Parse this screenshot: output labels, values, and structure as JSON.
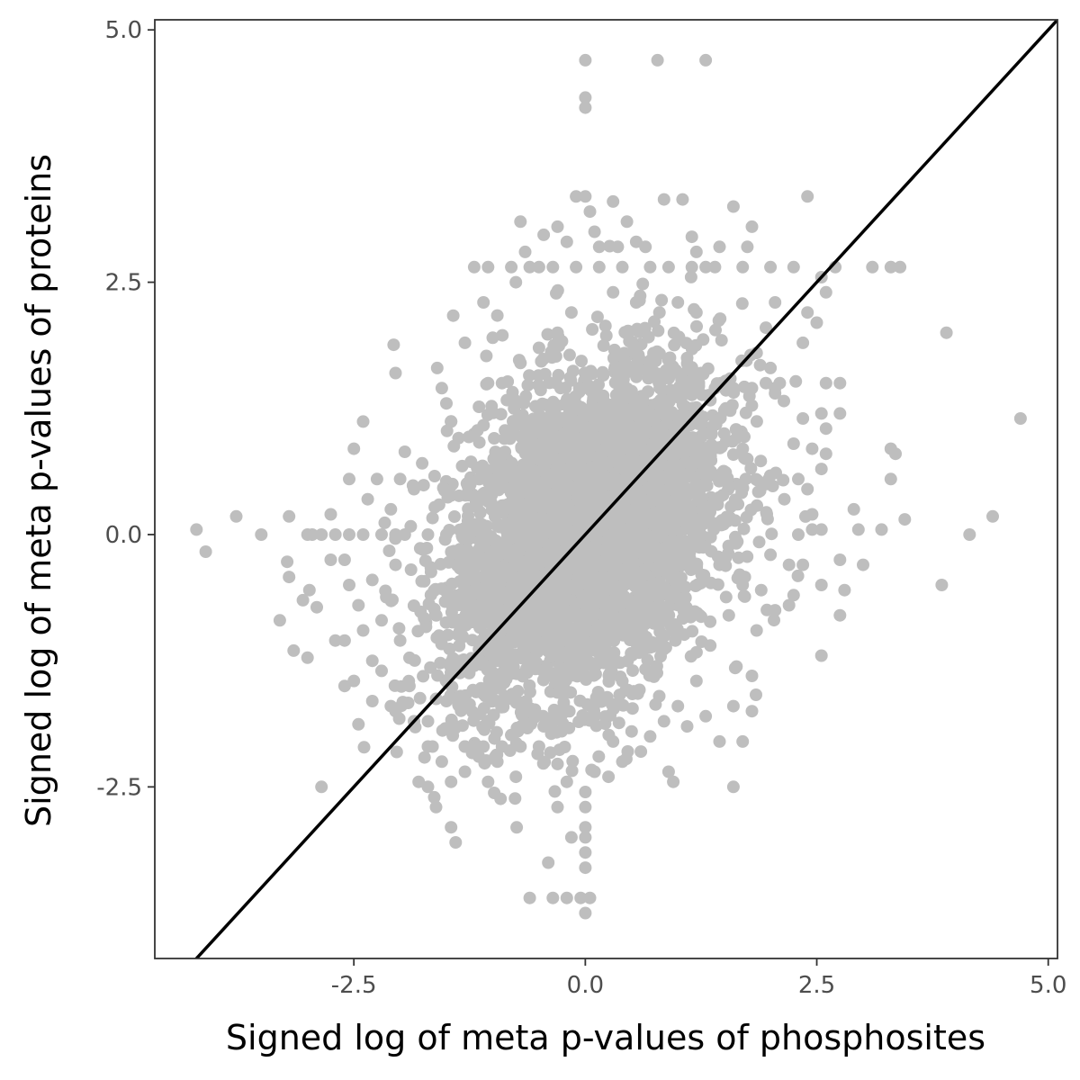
{
  "chart_data": {
    "type": "scatter",
    "xlabel": "Signed log of meta p-values of phosphosites",
    "ylabel": "Signed log of meta p-values of proteins",
    "xlim": [
      -4.65,
      5.1
    ],
    "ylim": [
      -4.2,
      5.1
    ],
    "x_ticks": [
      -2.5,
      0.0,
      2.5,
      5.0
    ],
    "x_tick_labels": [
      "-2.5",
      "0.0",
      "2.5",
      "5.0"
    ],
    "y_ticks": [
      -2.5,
      0.0,
      2.5,
      5.0
    ],
    "y_tick_labels": [
      "-2.5",
      "0.0",
      "2.5",
      "5.0"
    ],
    "grid": false,
    "reference_line": {
      "type": "identity",
      "slope": 1,
      "intercept": 0,
      "color": "#000000"
    },
    "point_color": "#bebebe",
    "dense_cloud": {
      "center": [
        0.0,
        0.0
      ],
      "sd_x": 0.72,
      "sd_y": 0.82,
      "correlation": 0.35,
      "count": 4200
    },
    "points": [
      [
        -4.2,
        0.05
      ],
      [
        -4.1,
        -0.17
      ],
      [
        -3.77,
        0.18
      ],
      [
        -3.5,
        0.0
      ],
      [
        -3.2,
        0.18
      ],
      [
        -3.22,
        -0.27
      ],
      [
        -3.2,
        -0.42
      ],
      [
        -3.0,
        0.0
      ],
      [
        -2.95,
        0.0
      ],
      [
        -2.98,
        -0.55
      ],
      [
        -3.05,
        -0.65
      ],
      [
        -2.9,
        -0.72
      ],
      [
        -3.3,
        -0.85
      ],
      [
        -3.15,
        -1.15
      ],
      [
        -3.0,
        -1.22
      ],
      [
        -2.75,
        0.2
      ],
      [
        -2.7,
        -1.05
      ],
      [
        -2.6,
        -1.5
      ],
      [
        -2.45,
        -1.88
      ],
      [
        -2.55,
        0.55
      ],
      [
        -2.5,
        0.85
      ],
      [
        -2.4,
        1.12
      ],
      [
        -2.85,
        -2.5
      ],
      [
        -2.4,
        -0.95
      ],
      [
        -2.2,
        -1.35
      ],
      [
        -2.1,
        -1.7
      ],
      [
        -2.05,
        -1.75
      ],
      [
        -2.5,
        -1.45
      ],
      [
        -2.3,
        -1.25
      ],
      [
        -2.2,
        -0.85
      ],
      [
        -2.6,
        -0.25
      ],
      [
        -2.55,
        -0.5
      ],
      [
        -2.45,
        -0.7
      ],
      [
        -2.3,
        -0.45
      ],
      [
        -2.15,
        -0.62
      ],
      [
        -2.05,
        -0.3
      ],
      [
        -2.1,
        0.25
      ],
      [
        -2.0,
        0.55
      ],
      [
        -2.0,
        -1.05
      ],
      [
        -1.9,
        -1.5
      ],
      [
        -2.05,
        1.6
      ],
      [
        -2.07,
        1.88
      ],
      [
        -1.95,
        0.82
      ],
      [
        -1.85,
        0.45
      ],
      [
        -1.8,
        -2.45
      ],
      [
        -1.7,
        -2.1
      ],
      [
        -1.55,
        -2.25
      ],
      [
        -1.45,
        -2.45
      ],
      [
        -1.45,
        -2.9
      ],
      [
        -1.4,
        -3.05
      ],
      [
        -1.4,
        -1.9
      ],
      [
        -1.3,
        -2.1
      ],
      [
        -1.6,
        1.65
      ],
      [
        -1.55,
        1.45
      ],
      [
        -1.5,
        1.3
      ],
      [
        -1.45,
        1.12
      ],
      [
        -1.3,
        1.9
      ],
      [
        -1.2,
        2.65
      ],
      [
        -1.05,
        2.65
      ],
      [
        -1.1,
        2.3
      ],
      [
        -1.0,
        1.95
      ],
      [
        -1.05,
        1.5
      ],
      [
        -0.95,
        2.17
      ],
      [
        -0.75,
        2.5
      ],
      [
        -0.7,
        3.1
      ],
      [
        -0.65,
        2.8
      ],
      [
        -0.5,
        2.65
      ],
      [
        -0.45,
        2.97
      ],
      [
        -0.3,
        3.05
      ],
      [
        -0.2,
        2.9
      ],
      [
        -0.1,
        3.35
      ],
      [
        0.0,
        3.35
      ],
      [
        0.05,
        3.2
      ],
      [
        0.1,
        3.0
      ],
      [
        0.15,
        2.85
      ],
      [
        0.3,
        3.3
      ],
      [
        0.35,
        2.85
      ],
      [
        0.45,
        3.1
      ],
      [
        0.55,
        2.9
      ],
      [
        0.65,
        2.85
      ],
      [
        0.85,
        3.32
      ],
      [
        1.05,
        3.32
      ],
      [
        1.15,
        2.95
      ],
      [
        1.2,
        2.8
      ],
      [
        1.4,
        2.65
      ],
      [
        1.45,
        2.85
      ],
      [
        1.6,
        3.25
      ],
      [
        1.7,
        2.65
      ],
      [
        1.75,
        2.85
      ],
      [
        1.8,
        3.05
      ],
      [
        2.0,
        2.65
      ],
      [
        2.25,
        2.65
      ],
      [
        2.4,
        3.35
      ],
      [
        2.55,
        2.55
      ],
      [
        2.6,
        2.4
      ],
      [
        2.7,
        2.65
      ],
      [
        3.1,
        2.65
      ],
      [
        3.3,
        2.65
      ],
      [
        3.4,
        2.65
      ],
      [
        3.9,
        2.0
      ],
      [
        2.4,
        2.2
      ],
      [
        2.5,
        2.1
      ],
      [
        2.35,
        1.9
      ],
      [
        2.05,
        2.3
      ],
      [
        1.95,
        2.05
      ],
      [
        1.85,
        1.8
      ],
      [
        2.0,
        1.65
      ],
      [
        2.05,
        1.4
      ],
      [
        2.1,
        1.5
      ],
      [
        1.95,
        1.5
      ],
      [
        2.6,
        1.5
      ],
      [
        2.75,
        1.5
      ],
      [
        2.55,
        1.2
      ],
      [
        2.75,
        1.2
      ],
      [
        2.35,
        1.15
      ],
      [
        2.6,
        1.05
      ],
      [
        2.45,
        0.85
      ],
      [
        2.6,
        0.8
      ],
      [
        2.55,
        0.65
      ],
      [
        2.25,
        0.9
      ],
      [
        2.3,
        0.55
      ],
      [
        2.4,
        0.45
      ],
      [
        2.15,
        0.35
      ],
      [
        2.45,
        0.2
      ],
      [
        2.45,
        0.05
      ],
      [
        2.55,
        0.05
      ],
      [
        2.3,
        0.0
      ],
      [
        2.75,
        -0.25
      ],
      [
        2.9,
        0.25
      ],
      [
        2.95,
        0.05
      ],
      [
        3.2,
        0.05
      ],
      [
        3.45,
        0.15
      ],
      [
        3.3,
        0.85
      ],
      [
        3.35,
        0.8
      ],
      [
        3.3,
        0.55
      ],
      [
        3.0,
        -0.3
      ],
      [
        2.8,
        -0.55
      ],
      [
        2.55,
        -0.5
      ],
      [
        2.25,
        -0.6
      ],
      [
        2.2,
        -0.3
      ],
      [
        2.35,
        -0.3
      ],
      [
        2.0,
        -0.2
      ],
      [
        2.75,
        -0.8
      ],
      [
        2.55,
        -1.2
      ],
      [
        2.2,
        -0.7
      ],
      [
        2.05,
        -0.75
      ],
      [
        1.9,
        -0.55
      ],
      [
        1.85,
        -0.95
      ],
      [
        1.8,
        -1.4
      ],
      [
        1.8,
        -1.75
      ],
      [
        1.6,
        -2.5
      ],
      [
        1.6,
        -1.7
      ],
      [
        1.7,
        -2.05
      ],
      [
        1.45,
        -2.05
      ],
      [
        1.3,
        -1.8
      ],
      [
        3.85,
        -0.5
      ],
      [
        4.15,
        0.0
      ],
      [
        4.4,
        0.18
      ],
      [
        4.7,
        1.15
      ],
      [
        0.0,
        4.7
      ],
      [
        0.78,
        4.7
      ],
      [
        1.3,
        4.7
      ],
      [
        0.0,
        4.33
      ],
      [
        0.0,
        4.23
      ],
      [
        -0.6,
        -3.6
      ],
      [
        -0.35,
        -3.6
      ],
      [
        -0.2,
        -3.6
      ],
      [
        -0.05,
        -3.6
      ],
      [
        0.05,
        -3.6
      ],
      [
        0.0,
        -3.75
      ],
      [
        0.0,
        -3.15
      ],
      [
        0.0,
        -3.3
      ],
      [
        0.0,
        -3.0
      ],
      [
        0.0,
        -2.9
      ],
      [
        -0.15,
        -3.0
      ],
      [
        -0.4,
        -3.25
      ],
      [
        -0.3,
        -2.7
      ],
      [
        -0.2,
        -2.45
      ],
      [
        0.0,
        -2.7
      ],
      [
        0.0,
        -2.55
      ],
      [
        0.1,
        -2.35
      ],
      [
        0.25,
        -2.4
      ],
      [
        0.4,
        -2.25
      ],
      [
        0.6,
        -2.15
      ],
      [
        0.9,
        -2.35
      ],
      [
        0.95,
        -2.45
      ],
      [
        1.1,
        -1.9
      ],
      [
        -0.75,
        -2.4
      ],
      [
        -0.95,
        -2.25
      ],
      [
        -1.05,
        -2.45
      ],
      [
        -1.15,
        -2.2
      ],
      [
        -1.3,
        -2.35
      ],
      [
        -1.65,
        -2.1
      ],
      [
        -1.7,
        -2.5
      ],
      [
        -1.85,
        -1.85
      ],
      [
        -1.7,
        -1.85
      ],
      [
        -1.5,
        -1.65
      ],
      [
        -1.35,
        -1.6
      ],
      [
        -1.2,
        -2.1
      ],
      [
        -2.85,
        0.0
      ],
      [
        -2.7,
        0.0
      ],
      [
        -2.55,
        0.0
      ],
      [
        -2.4,
        0.0
      ],
      [
        -2.2,
        0.0
      ],
      [
        -2.05,
        0.0
      ],
      [
        -1.95,
        0.0
      ],
      [
        -1.7,
        0.0
      ],
      [
        -1.5,
        0.0
      ],
      [
        -1.3,
        0.0
      ],
      [
        -1.1,
        0.0
      ],
      [
        -0.8,
        2.65
      ],
      [
        -0.6,
        2.65
      ],
      [
        -0.35,
        2.65
      ],
      [
        -0.1,
        2.65
      ],
      [
        0.15,
        2.65
      ],
      [
        0.4,
        2.65
      ],
      [
        0.7,
        2.65
      ],
      [
        0.9,
        2.65
      ],
      [
        1.15,
        2.65
      ],
      [
        1.3,
        2.65
      ],
      [
        -1.3,
        -2.1
      ],
      [
        -1.1,
        -2.1
      ],
      [
        -0.9,
        -2.1
      ],
      [
        -0.7,
        -2.1
      ],
      [
        -0.5,
        -2.1
      ],
      [
        -1.2,
        -1.3
      ],
      [
        -1.0,
        -1.5
      ],
      [
        -0.8,
        -1.6
      ],
      [
        -0.6,
        -1.75
      ],
      [
        -0.45,
        -1.9
      ],
      [
        -0.9,
        1.5
      ],
      [
        -0.7,
        1.7
      ],
      [
        -0.5,
        1.85
      ],
      [
        -0.3,
        2.0
      ],
      [
        -0.15,
        2.2
      ],
      [
        0.3,
        2.4
      ],
      [
        0.55,
        2.3
      ],
      [
        0.8,
        2.2
      ],
      [
        1.0,
        2.3
      ],
      [
        1.2,
        2.2
      ],
      [
        1.4,
        1.45
      ],
      [
        1.6,
        1.45
      ],
      [
        1.8,
        1.45
      ],
      [
        2.05,
        1.45
      ],
      [
        1.1,
        1.75
      ],
      [
        1.25,
        1.6
      ],
      [
        1.5,
        1.0
      ],
      [
        1.75,
        0.75
      ],
      [
        1.95,
        0.5
      ],
      [
        1.65,
        0.3
      ],
      [
        1.45,
        -0.3
      ],
      [
        1.7,
        -0.5
      ],
      [
        1.55,
        -0.8
      ],
      [
        1.35,
        -1.1
      ],
      [
        1.2,
        -1.45
      ],
      [
        1.0,
        -1.7
      ],
      [
        0.85,
        -1.85
      ],
      [
        0.7,
        -2.0
      ],
      [
        0.5,
        -1.95
      ],
      [
        0.3,
        -2.05
      ],
      [
        -2.3,
        -1.65
      ],
      [
        -2.6,
        -1.05
      ],
      [
        -2.75,
        -0.25
      ],
      [
        -2.35,
        0.35
      ],
      [
        -2.25,
        0.55
      ]
    ]
  }
}
